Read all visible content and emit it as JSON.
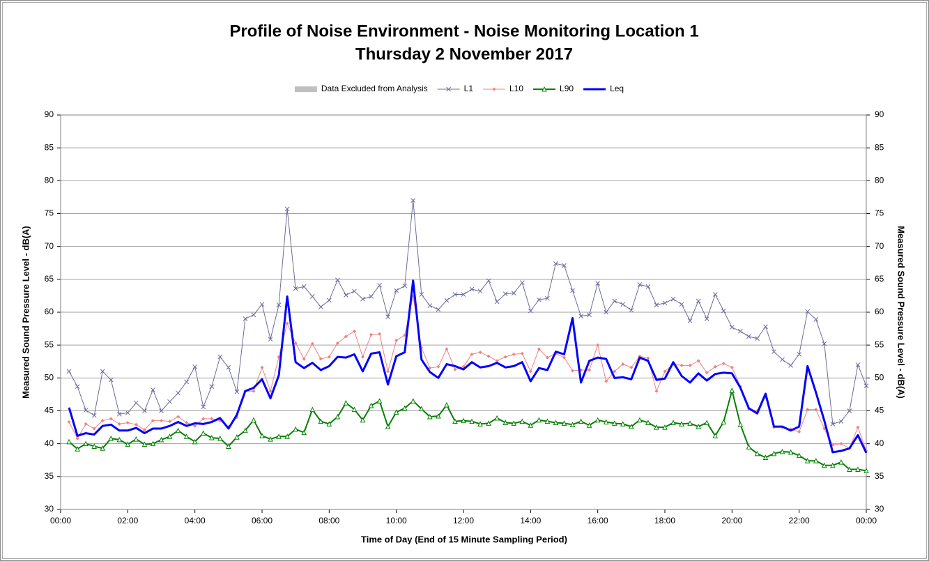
{
  "chart_data": {
    "type": "line",
    "title": "Profile of Noise Environment - Noise Monitoring Location 1",
    "subtitle": "Thursday 2 November 2017",
    "xlabel": "Time of Day (End of 15 Minute Sampling Period)",
    "ylabel": "Measured Sound Pressure Level - dB(A)",
    "y2label": "Measured Sound Pressure Level - dB(A)",
    "legend": "top",
    "grid": true,
    "xlim": [
      0,
      24
    ],
    "xticks": [
      {
        "value": 0,
        "label": "00:00"
      },
      {
        "value": 2,
        "label": "02:00"
      },
      {
        "value": 4,
        "label": "04:00"
      },
      {
        "value": 6,
        "label": "06:00"
      },
      {
        "value": 8,
        "label": "08:00"
      },
      {
        "value": 10,
        "label": "10:00"
      },
      {
        "value": 12,
        "label": "12:00"
      },
      {
        "value": 14,
        "label": "14:00"
      },
      {
        "value": 16,
        "label": "16:00"
      },
      {
        "value": 18,
        "label": "18:00"
      },
      {
        "value": 20,
        "label": "20:00"
      },
      {
        "value": 22,
        "label": "22:00"
      },
      {
        "value": 24,
        "label": "00:00"
      }
    ],
    "ylim": [
      30,
      90
    ],
    "yticks": [
      30,
      35,
      40,
      45,
      50,
      55,
      60,
      65,
      70,
      75,
      80,
      85,
      90
    ],
    "y2lim": [
      30,
      90
    ],
    "y2ticks": [
      30,
      35,
      40,
      45,
      50,
      55,
      60,
      65,
      70,
      75,
      80,
      85,
      90
    ],
    "x": [
      0.25,
      0.5,
      0.75,
      1,
      1.25,
      1.5,
      1.75,
      2,
      2.25,
      2.5,
      2.75,
      3,
      3.25,
      3.5,
      3.75,
      4,
      4.25,
      4.5,
      4.75,
      5,
      5.25,
      5.5,
      5.75,
      6,
      6.25,
      6.5,
      6.75,
      7,
      7.25,
      7.5,
      7.75,
      8,
      8.25,
      8.5,
      8.75,
      9,
      9.25,
      9.5,
      9.75,
      10,
      10.25,
      10.5,
      10.75,
      11,
      11.25,
      11.5,
      11.75,
      12,
      12.25,
      12.5,
      12.75,
      13,
      13.25,
      13.5,
      13.75,
      14,
      14.25,
      14.5,
      14.75,
      15,
      15.25,
      15.5,
      15.75,
      16,
      16.25,
      16.5,
      16.75,
      17,
      17.25,
      17.5,
      17.75,
      18,
      18.25,
      18.5,
      18.75,
      19,
      19.25,
      19.5,
      19.75,
      20,
      20.25,
      20.5,
      20.75,
      21,
      21.25,
      21.5,
      21.75,
      22,
      22.25,
      22.5,
      22.75,
      23,
      23.25,
      23.5,
      23.75,
      24
    ],
    "series": [
      {
        "name": "Data Excluded from Analysis",
        "color": "#bfbfbf",
        "marker": "bar",
        "line_width": 0,
        "values": [
          null,
          null,
          null,
          null,
          null,
          null,
          null,
          null,
          null,
          null,
          null,
          null,
          null,
          null,
          null,
          null,
          null,
          null,
          null,
          null,
          null,
          null,
          null,
          null,
          null,
          null,
          null,
          null,
          null,
          null,
          null,
          null,
          null,
          null,
          null,
          null,
          null,
          null,
          null,
          null,
          null,
          null,
          null,
          null,
          null,
          null,
          null,
          null,
          null,
          null,
          null,
          null,
          null,
          null,
          null,
          null,
          null,
          null,
          null,
          null,
          null,
          null,
          null,
          null,
          null,
          null,
          null,
          null,
          null,
          null,
          null,
          null,
          null,
          null,
          null,
          null,
          null,
          null,
          null,
          null,
          null,
          null,
          null,
          null,
          null,
          null,
          null,
          null,
          null,
          null,
          null,
          null,
          null,
          null,
          null,
          null
        ]
      },
      {
        "name": "L1",
        "color": "#6b6b9e",
        "marker": "x",
        "line_width": 1,
        "values": [
          51.0,
          48.7,
          45.1,
          44.3,
          51.0,
          49.7,
          44.5,
          44.7,
          46.2,
          45.0,
          48.2,
          45.0,
          46.4,
          47.7,
          49.4,
          51.7,
          45.6,
          48.7,
          53.2,
          51.6,
          47.9,
          59.0,
          59.6,
          61.2,
          55.9,
          61.1,
          75.7,
          63.6,
          63.9,
          62.4,
          60.8,
          61.8,
          64.9,
          62.6,
          63.2,
          62.0,
          62.4,
          64.1,
          59.3,
          63.3,
          64.0,
          77.0,
          62.7,
          61.0,
          60.4,
          61.8,
          62.7,
          62.7,
          63.5,
          63.2,
          64.8,
          61.6,
          62.8,
          62.9,
          64.5,
          60.2,
          61.9,
          62.1,
          67.4,
          67.1,
          63.3,
          59.4,
          59.6,
          64.4,
          60.0,
          61.7,
          61.2,
          60.3,
          64.2,
          63.9,
          61.1,
          61.4,
          62.0,
          61.2,
          58.7,
          61.7,
          59.0,
          62.7,
          60.2,
          57.7,
          57.1,
          56.3,
          56.0,
          57.8,
          54.0,
          52.8,
          51.9,
          53.6,
          60.1,
          58.9,
          55.2,
          43.0,
          43.4,
          45.0,
          52.0,
          48.8
        ]
      },
      {
        "name": "L10",
        "color": "#f08080",
        "marker": "diamond",
        "line_width": 1,
        "values": [
          43.3,
          40.8,
          43.0,
          42.3,
          43.5,
          43.8,
          43.0,
          43.2,
          42.9,
          42.1,
          43.5,
          43.5,
          43.4,
          44.1,
          43.2,
          42.7,
          43.8,
          43.8,
          43.5,
          42.6,
          44.0,
          48.0,
          48.0,
          51.6,
          48.0,
          53.2,
          58.3,
          55.3,
          52.9,
          55.2,
          52.9,
          53.2,
          55.3,
          56.3,
          57.1,
          53.2,
          56.6,
          56.7,
          51.0,
          55.7,
          56.5,
          62.4,
          54.6,
          51.5,
          51.7,
          54.4,
          51.3,
          51.7,
          53.6,
          53.9,
          53.3,
          52.6,
          53.2,
          53.6,
          53.7,
          51.0,
          54.4,
          53.1,
          53.7,
          53.1,
          51.1,
          51.2,
          51.2,
          55.0,
          49.5,
          51.0,
          52.1,
          51.6,
          53.3,
          53.0,
          48.0,
          51.0,
          52.1,
          51.9,
          51.9,
          52.6,
          50.8,
          51.7,
          52.2,
          51.6,
          48.7,
          45.3,
          45.0,
          47.1,
          42.5,
          42.5,
          42.2,
          41.8,
          45.2,
          45.2,
          42.3,
          39.8,
          40.0,
          39.3,
          42.5,
          38.9
        ]
      },
      {
        "name": "L90",
        "color": "#008000",
        "marker": "triangle",
        "line_width": 2,
        "values": [
          40.3,
          39.2,
          40.0,
          39.6,
          39.3,
          40.8,
          40.6,
          39.9,
          40.7,
          39.9,
          40.0,
          40.6,
          41.1,
          42.0,
          41.1,
          40.3,
          41.6,
          40.9,
          40.8,
          39.6,
          41.0,
          42.0,
          43.6,
          41.2,
          40.7,
          41.1,
          41.1,
          42.2,
          41.7,
          45.2,
          43.4,
          43.0,
          44.1,
          46.2,
          45.2,
          43.6,
          45.8,
          46.5,
          42.6,
          44.8,
          45.4,
          46.5,
          45.3,
          44.1,
          44.2,
          45.9,
          43.4,
          43.5,
          43.4,
          43.0,
          43.1,
          43.9,
          43.2,
          43.1,
          43.4,
          42.8,
          43.6,
          43.4,
          43.2,
          43.1,
          42.9,
          43.4,
          42.8,
          43.6,
          43.3,
          43.1,
          43.0,
          42.6,
          43.6,
          43.2,
          42.5,
          42.5,
          43.2,
          43.0,
          43.1,
          42.6,
          43.2,
          41.2,
          43.3,
          48.1,
          42.9,
          39.5,
          38.5,
          37.9,
          38.5,
          38.8,
          38.7,
          38.2,
          37.4,
          37.4,
          36.7,
          36.7,
          37.2,
          36.1,
          36.1,
          35.9
        ]
      },
      {
        "name": "Leq",
        "color": "#0000ff",
        "marker": "none",
        "line_width": 3,
        "values": [
          45.5,
          41.2,
          41.6,
          41.4,
          42.7,
          42.9,
          42.0,
          42.0,
          42.4,
          41.6,
          42.3,
          42.3,
          42.7,
          43.3,
          42.7,
          43.1,
          43.0,
          43.3,
          43.9,
          42.3,
          44.4,
          48.0,
          48.5,
          49.8,
          46.9,
          50.4,
          62.4,
          52.4,
          51.5,
          52.3,
          51.2,
          51.8,
          53.2,
          53.1,
          53.6,
          51.0,
          53.7,
          53.9,
          49.0,
          53.3,
          53.9,
          64.8,
          52.8,
          50.9,
          50.0,
          52.1,
          51.8,
          51.3,
          52.4,
          51.6,
          51.8,
          52.3,
          51.6,
          51.8,
          52.4,
          49.5,
          51.5,
          51.2,
          54.0,
          53.6,
          59.1,
          49.3,
          52.6,
          53.1,
          52.9,
          50.0,
          50.1,
          49.8,
          53.1,
          52.6,
          49.7,
          49.9,
          52.4,
          50.3,
          49.3,
          50.7,
          49.6,
          50.6,
          50.8,
          50.7,
          48.5,
          45.4,
          44.6,
          47.6,
          42.6,
          42.6,
          42.0,
          42.6,
          51.8,
          47.8,
          43.5,
          38.7,
          38.9,
          39.3,
          41.3,
          38.6
        ]
      }
    ]
  }
}
